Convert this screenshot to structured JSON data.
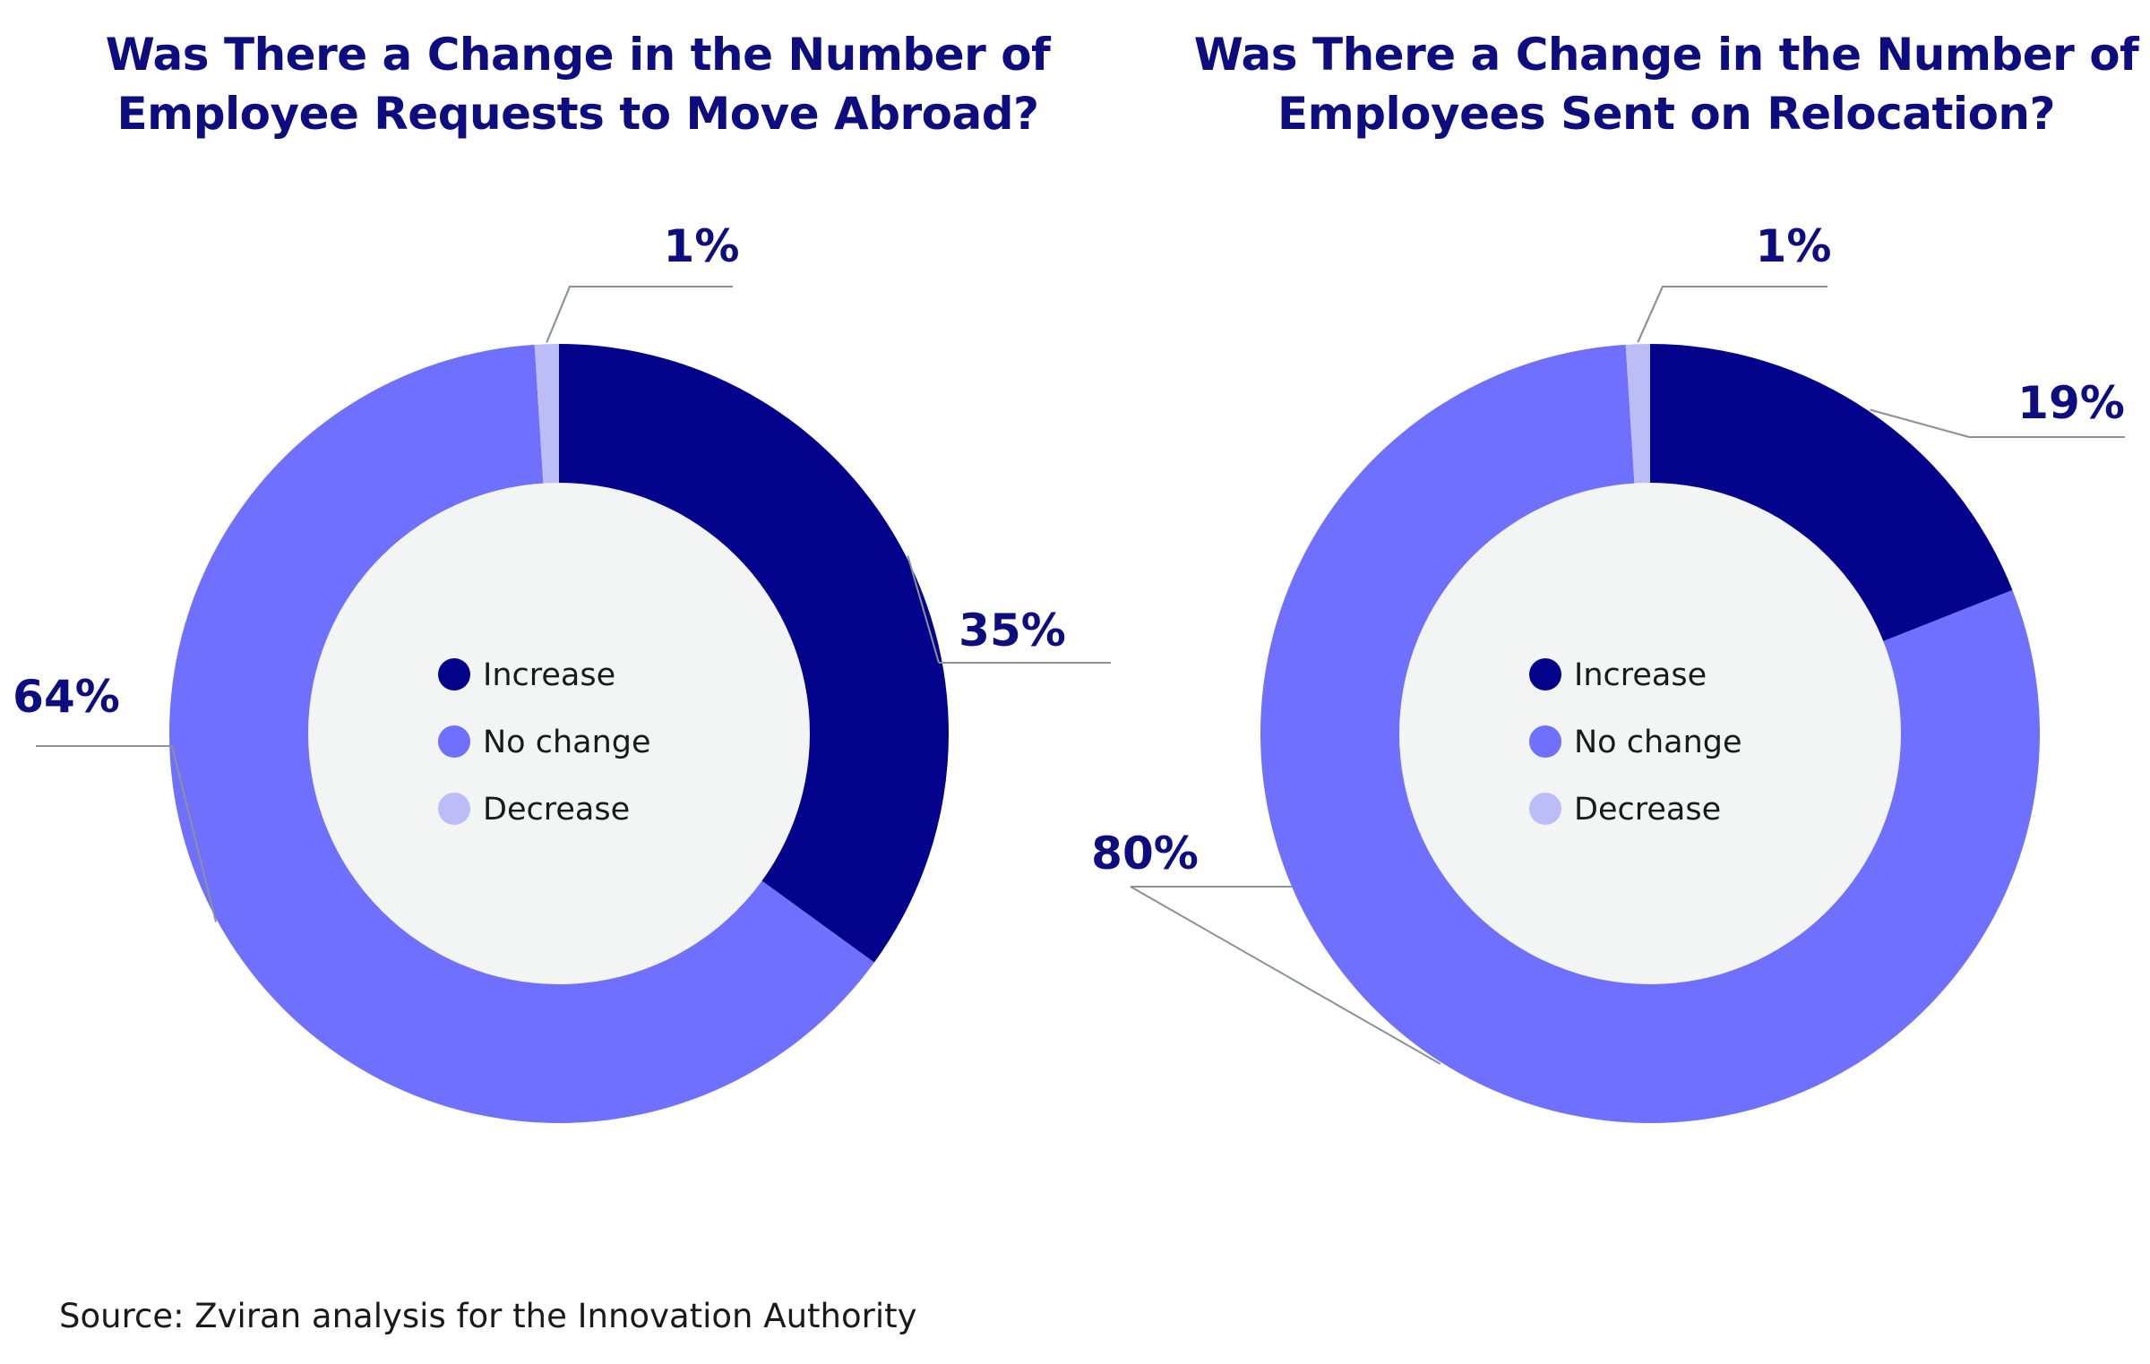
{
  "colors": {
    "increase": "#03038c",
    "no_change": "#7070ff",
    "decrease": "#bcbcf7",
    "hole": "#f3f4f4",
    "leader": "#8c9295",
    "title": "#0d0d7f"
  },
  "legend": [
    "Increase",
    "No change",
    "Decrease"
  ],
  "chart_data": [
    {
      "type": "pie",
      "variant": "donut",
      "title_lines": [
        "Was There a Change in the Number of",
        "Employee Requests to Move Abroad?"
      ],
      "categories": [
        "Increase",
        "No change",
        "Decrease"
      ],
      "values": [
        35,
        64,
        1
      ],
      "value_labels": [
        "35%",
        "64%",
        "1%"
      ]
    },
    {
      "type": "pie",
      "variant": "donut",
      "title_lines": [
        "Was There a Change in the Number of",
        "Employees Sent on Relocation?"
      ],
      "categories": [
        "Increase",
        "No change",
        "Decrease"
      ],
      "values": [
        19,
        80,
        1
      ],
      "value_labels": [
        "19%",
        "80%",
        "1%"
      ]
    }
  ],
  "source": "Source: Zviran analysis for the Innovation Authority"
}
